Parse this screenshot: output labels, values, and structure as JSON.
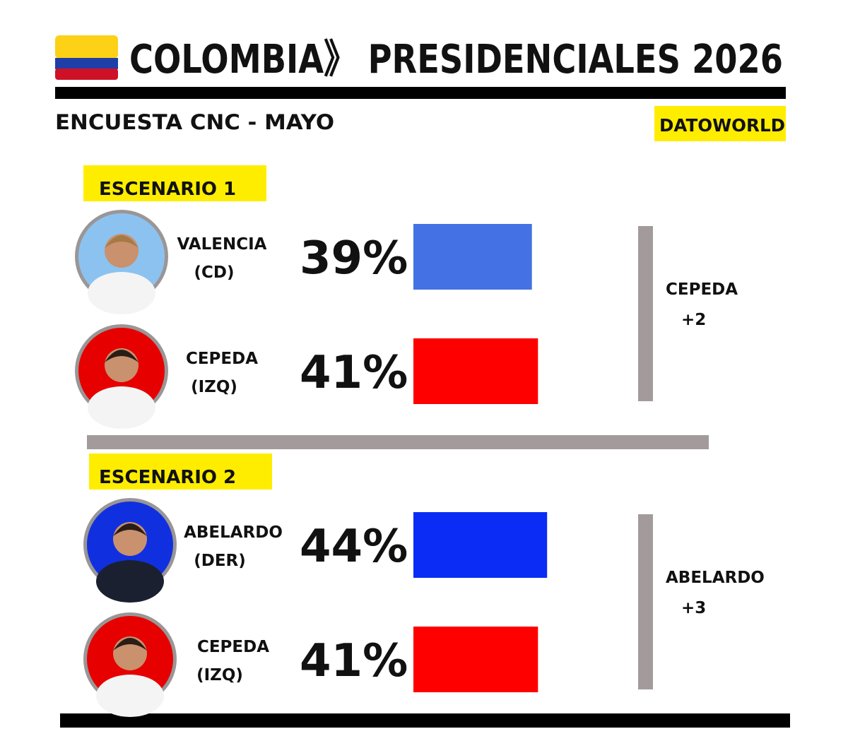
{
  "header": {
    "title": "COLOMBIA》 PRESIDENCIALES 2026",
    "subtitle": "ENCUESTA CNC - MAYO",
    "brand": "DATOWORLD"
  },
  "scenarios": [
    {
      "label": "ESCENARIO 1",
      "candidates": [
        {
          "name": "VALENCIA",
          "party": "(CD)",
          "value": 39,
          "value_label": "39%",
          "color": "#4472e4"
        },
        {
          "name": "CEPEDA",
          "party": "(IZQ)",
          "value": 41,
          "value_label": "41%",
          "color": "#ff0000"
        }
      ],
      "lead": {
        "name": "CEPEDA",
        "margin": "+2"
      }
    },
    {
      "label": "ESCENARIO 2",
      "candidates": [
        {
          "name": "ABELARDO",
          "party": "(DER)",
          "value": 44,
          "value_label": "44%",
          "color": "#0a2cf5"
        },
        {
          "name": "CEPEDA",
          "party": "(IZQ)",
          "value": 41,
          "value_label": "41%",
          "color": "#ff0000"
        }
      ],
      "lead": {
        "name": "ABELARDO",
        "margin": "+3"
      }
    }
  ]
}
